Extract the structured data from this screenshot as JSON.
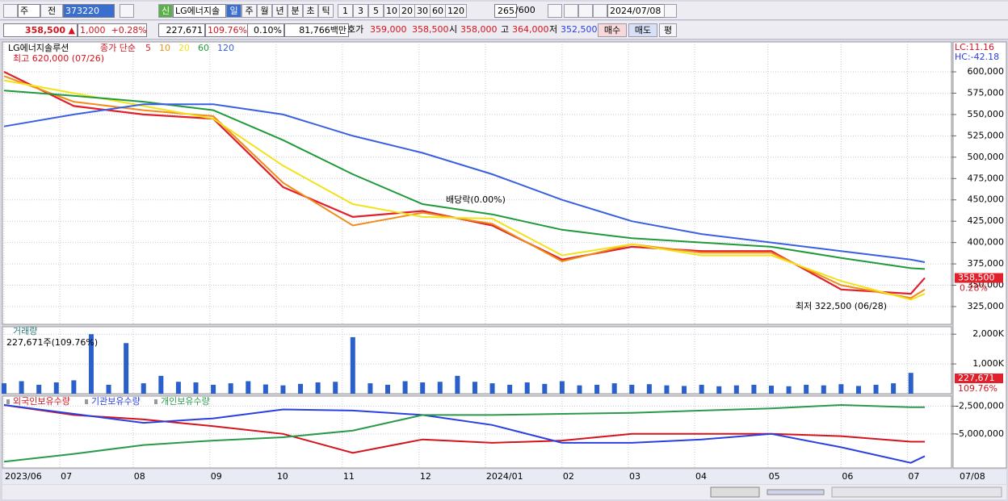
{
  "toolbar": {
    "period_select": "주",
    "prev_button": "전",
    "code": "373220",
    "name": "LG에너지솔",
    "credit_badge": "신",
    "periods": [
      "일",
      "주",
      "월",
      "년",
      "분",
      "초",
      "틱"
    ],
    "intervals": [
      "1",
      "3",
      "5",
      "10",
      "20",
      "30",
      "60",
      "120"
    ],
    "bar_count": "265",
    "bar_max": "/600",
    "date": "2024/07/08"
  },
  "quote": {
    "price": "358,500",
    "arrow": "▲",
    "change": "1,000",
    "change_pct": "+0.28%",
    "volume": "227,671",
    "volume_ratio": "109.76%",
    "turnover": "0.10%",
    "amount": "81,766백만",
    "bid_ask_label": "호가",
    "ask": "359,000",
    "bid": "358,500",
    "open_label": "시",
    "open": "358,000",
    "high_label": "고",
    "high": "364,000",
    "low_label": "저",
    "low": "352,500",
    "buy_button": "매수",
    "sell_button": "매도",
    "eval_button": "평"
  },
  "chart_data": [
    {
      "type": "line",
      "title": "LG에너지솔루션",
      "subtitle": "종가 단순",
      "x": [
        0,
        20,
        40,
        60,
        80,
        100,
        120,
        140,
        160,
        180,
        200,
        220,
        240,
        260,
        264
      ],
      "xlim": [
        0,
        264
      ],
      "series": [
        {
          "name": "5",
          "color": "#e0202a",
          "values": [
            600000,
            560000,
            550000,
            545000,
            465000,
            430000,
            437000,
            420000,
            380000,
            395000,
            390000,
            390000,
            345000,
            340000,
            358500
          ]
        },
        {
          "name": "10",
          "color": "#f08c1a",
          "values": [
            595000,
            565000,
            555000,
            548000,
            470000,
            420000,
            435000,
            422000,
            378000,
            398000,
            388000,
            388000,
            350000,
            335000,
            345000
          ]
        },
        {
          "name": "20",
          "color": "#f2e21a",
          "values": [
            590000,
            575000,
            560000,
            545000,
            490000,
            445000,
            430000,
            428000,
            385000,
            398000,
            385000,
            385000,
            355000,
            333000,
            340000
          ]
        },
        {
          "name": "60",
          "color": "#1f9a3a",
          "values": [
            578000,
            572000,
            565000,
            555000,
            520000,
            480000,
            445000,
            433000,
            415000,
            405000,
            400000,
            395000,
            382000,
            370000,
            369000
          ]
        },
        {
          "name": "120",
          "color": "#3a5fe0",
          "values": [
            536000,
            550000,
            562000,
            562000,
            550000,
            525000,
            505000,
            480000,
            450000,
            425000,
            410000,
            400000,
            390000,
            380000,
            377000
          ]
        }
      ],
      "ylim": [
        304200,
        635000
      ],
      "yticks": [
        {
          "value": 325000,
          "label": "325,000"
        },
        {
          "value": 350000,
          "label": "350,000"
        },
        {
          "value": 375000,
          "label": "375,000"
        },
        {
          "value": 400000,
          "label": "400,000"
        },
        {
          "value": 425000,
          "label": "425,000"
        },
        {
          "value": 450000,
          "label": "450,000"
        },
        {
          "value": 475000,
          "label": "475,000"
        },
        {
          "value": 500000,
          "label": "500,000"
        },
        {
          "value": 525000,
          "label": "525,000"
        },
        {
          "value": 550000,
          "label": "550,000"
        },
        {
          "value": 575000,
          "label": "575,000"
        },
        {
          "value": 600000,
          "label": "600,000"
        }
      ],
      "annotations": {
        "high": "최고 620,000 (07/26)",
        "dividend": "배당락(0.00%)",
        "low": "최저 322,500 (06/28)",
        "lc": "LC:11.16",
        "hc": "HC:-42.18",
        "change_badge": "0.28%"
      },
      "grid": true
    },
    {
      "type": "bar",
      "title": "거래량",
      "subtitle": "227,671주(109.76%)",
      "x": [
        0,
        5,
        10,
        15,
        20,
        25,
        30,
        35,
        40,
        45,
        50,
        55,
        60,
        65,
        70,
        75,
        80,
        85,
        90,
        95,
        100,
        105,
        110,
        115,
        120,
        125,
        130,
        135,
        140,
        145,
        150,
        155,
        160,
        165,
        170,
        175,
        180,
        185,
        190,
        195,
        200,
        205,
        210,
        215,
        220,
        225,
        230,
        235,
        240,
        245,
        250,
        255,
        260
      ],
      "xlim": [
        0,
        264
      ],
      "color": "#2b5fc9",
      "values": [
        350,
        420,
        300,
        380,
        450,
        2000,
        300,
        1700,
        350,
        600,
        400,
        380,
        300,
        350,
        420,
        310,
        280,
        330,
        380,
        400,
        1900,
        350,
        300,
        420,
        380,
        400,
        600,
        400,
        350,
        300,
        380,
        330,
        420,
        280,
        300,
        350,
        300,
        320,
        280,
        260,
        300,
        250,
        280,
        300,
        270,
        250,
        300,
        280,
        320,
        260,
        300,
        350,
        700
      ],
      "ylim": [
        0,
        2250
      ],
      "yticks": [
        {
          "value": 1000,
          "label": "1,000K"
        },
        {
          "value": 2000,
          "label": "2,000K"
        }
      ],
      "grid": true
    },
    {
      "type": "line",
      "x": [
        0,
        20,
        40,
        60,
        80,
        100,
        120,
        140,
        160,
        180,
        200,
        220,
        240,
        260,
        264
      ],
      "xlim": [
        0,
        264
      ],
      "series": [
        {
          "name": "외국인보유수량",
          "color": "#d4141c",
          "values": [
            -2400000,
            -3300000,
            -3700000,
            -4300000,
            -5000000,
            -6700000,
            -5500000,
            -5800000,
            -5600000,
            -5000000,
            -5000000,
            -5000000,
            -5200000,
            -5700000,
            -5700000
          ]
        },
        {
          "name": "기관보유수량",
          "color": "#2a3fe0",
          "values": [
            -2400000,
            -3200000,
            -4000000,
            -3600000,
            -2800000,
            -2900000,
            -3300000,
            -4200000,
            -5800000,
            -5800000,
            -5500000,
            -5000000,
            -6200000,
            -7600000,
            -7000000
          ]
        },
        {
          "name": "개인보유수량",
          "color": "#2a9a4a",
          "values": [
            -7500000,
            -6800000,
            -6000000,
            -5600000,
            -5300000,
            -4700000,
            -3300000,
            -3300000,
            -3200000,
            -3100000,
            -2900000,
            -2700000,
            -2400000,
            -2600000,
            -2600000
          ]
        }
      ],
      "ylim": [
        -8060000,
        -1600000
      ],
      "yticks": [
        {
          "value": -5000000,
          "label": "-5,000,000"
        },
        {
          "value": -2500000,
          "label": "-2,500,000"
        }
      ],
      "xticks": [
        {
          "value": 0,
          "label": "2023/06"
        },
        {
          "value": 16,
          "label": "07"
        },
        {
          "value": 37,
          "label": "08"
        },
        {
          "value": 59,
          "label": "09"
        },
        {
          "value": 78,
          "label": "10"
        },
        {
          "value": 97,
          "label": "11"
        },
        {
          "value": 119,
          "label": "12"
        },
        {
          "value": 138,
          "label": "2024/01"
        },
        {
          "value": 160,
          "label": "02"
        },
        {
          "value": 179,
          "label": "03"
        },
        {
          "value": 198,
          "label": "04"
        },
        {
          "value": 219,
          "label": "05"
        },
        {
          "value": 240,
          "label": "06"
        },
        {
          "value": 259,
          "label": "07"
        }
      ],
      "cursor_date": "07/08",
      "grid": true
    }
  ]
}
